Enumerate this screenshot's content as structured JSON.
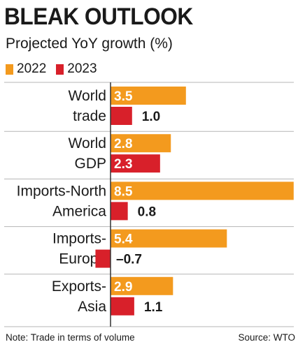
{
  "chart_data": {
    "type": "bar",
    "title": "BLEAK OUTLOOK",
    "subtitle": "Projected YoY growth (%)",
    "categories": [
      [
        "World",
        "trade"
      ],
      [
        "World",
        "GDP"
      ],
      [
        "Imports-North",
        "America"
      ],
      [
        "Imports-",
        "Europe"
      ],
      [
        "Exports-",
        "Asia"
      ]
    ],
    "series": [
      {
        "name": "2022",
        "color": "#f39a1e",
        "values": [
          3.5,
          2.8,
          8.5,
          5.4,
          2.9
        ]
      },
      {
        "name": "2023",
        "color": "#d8202a",
        "values": [
          1.0,
          2.3,
          0.8,
          -0.7,
          1.1
        ]
      }
    ],
    "value_labels": [
      [
        "3.5",
        "2.8",
        "8.5",
        "5.4",
        "2.9"
      ],
      [
        "1.0",
        "2.3",
        "0.8",
        "–0.7",
        "1.1"
      ]
    ],
    "orientation": "horizontal",
    "legend": "top-left"
  },
  "footer": {
    "note": "Note: Trade in terms of volume",
    "source": "Source: WTO"
  }
}
